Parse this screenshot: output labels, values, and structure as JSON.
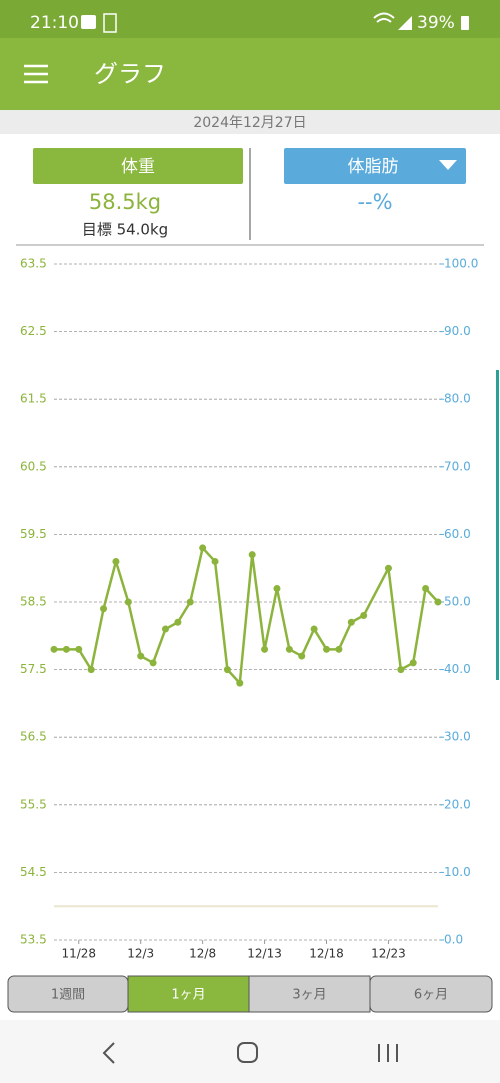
{
  "status_bar": {
    "time": "21:10",
    "battery": "39%"
  },
  "app_bar": {
    "title": "グラフ"
  },
  "date": "2024年12月27日",
  "weight_panel": {
    "button": "体重",
    "value": "58.5kg",
    "goal": "目標 54.0kg"
  },
  "fat_panel": {
    "button": "体脂肪",
    "value": "--%"
  },
  "chart_data": {
    "type": "line",
    "x": [
      "11/26",
      "11/27",
      "11/28",
      "11/29",
      "11/30",
      "12/1",
      "12/2",
      "12/3",
      "12/4",
      "12/5",
      "12/6",
      "12/7",
      "12/8",
      "12/9",
      "12/10",
      "12/11",
      "12/12",
      "12/13",
      "12/14",
      "12/15",
      "12/16",
      "12/17",
      "12/18",
      "12/19",
      "12/20",
      "12/21",
      "12/23",
      "12/24",
      "12/25",
      "12/26",
      "12/27"
    ],
    "values": [
      57.8,
      57.8,
      57.8,
      57.5,
      58.4,
      59.1,
      58.5,
      57.7,
      57.6,
      58.1,
      58.2,
      58.5,
      59.3,
      59.1,
      57.5,
      57.3,
      59.2,
      57.8,
      58.7,
      57.8,
      57.7,
      58.1,
      57.8,
      57.8,
      58.2,
      58.3,
      59.0,
      57.5,
      57.6,
      58.7,
      58.5
    ],
    "color": "#8cb43c",
    "xticks": [
      "11/28",
      "12/3",
      "12/8",
      "12/13",
      "12/18",
      "12/23"
    ],
    "ylim": [
      53.5,
      63.5
    ],
    "yticks": [
      53.5,
      54.5,
      55.5,
      56.5,
      57.5,
      58.5,
      59.5,
      60.5,
      61.5,
      62.5,
      63.5
    ],
    "y_color": "#8cb43c",
    "y2lim": [
      0,
      100
    ],
    "y2ticks": [
      {
        "value": 0,
        "label": "0.0"
      },
      {
        "value": 10,
        "label": "10.0"
      },
      {
        "value": 20,
        "label": "20.0"
      },
      {
        "value": 30,
        "label": "30.0"
      },
      {
        "value": 40,
        "label": "40.0"
      },
      {
        "value": 50,
        "label": "50.0"
      },
      {
        "value": 60,
        "label": "60.0"
      },
      {
        "value": 70,
        "label": "70.0"
      },
      {
        "value": 80,
        "label": "80.0"
      },
      {
        "value": 90,
        "label": "90.0"
      },
      {
        "value": 100,
        "label": "100.0"
      }
    ],
    "y2_color": "#5aabdb",
    "goal": 54.0,
    "goal_color": "#ece6cf",
    "grid": true
  },
  "tabs": [
    {
      "label": "1週間",
      "selected": false
    },
    {
      "label": "1ヶ月",
      "selected": true
    },
    {
      "label": "3ヶ月",
      "selected": false
    },
    {
      "label": "6ヶ月",
      "selected": false
    }
  ]
}
